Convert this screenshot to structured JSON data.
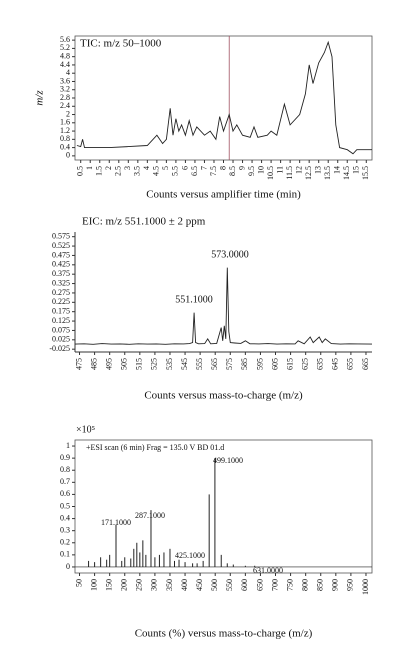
{
  "chart_data": [
    {
      "type": "line",
      "title": "TIC: m/z 50–1000",
      "ylabel": "m/z",
      "xlabel": "Counts versus amplifier time (min)",
      "color": "#222222",
      "cursor_x": 8.3,
      "x": [
        0.3,
        0.5,
        0.6,
        0.7,
        1,
        2,
        3,
        4,
        4.3,
        4.5,
        4.8,
        5,
        5.2,
        5.35,
        5.5,
        5.65,
        5.8,
        6,
        6.2,
        6.4,
        6.6,
        7,
        7.3,
        7.6,
        7.8,
        8,
        8.3,
        8.5,
        8.7,
        9,
        9.4,
        9.6,
        9.8,
        10.3,
        10.5,
        10.8,
        11.2,
        11.5,
        12,
        12.3,
        12.5,
        12.7,
        13,
        13.3,
        13.5,
        13.7,
        13.9,
        14.1,
        14.5,
        14.8,
        15,
        15.8
      ],
      "values": [
        0.5,
        0.45,
        0.8,
        0.4,
        0.4,
        0.4,
        0.45,
        0.5,
        0.8,
        1.0,
        0.6,
        0.8,
        2.3,
        1.0,
        1.8,
        1.2,
        1.5,
        1.0,
        1.7,
        1.0,
        1.4,
        1.0,
        1.2,
        0.8,
        1.9,
        1.2,
        2.0,
        1.2,
        1.5,
        1.0,
        0.9,
        1.4,
        0.9,
        1.0,
        1.2,
        1.0,
        2.5,
        1.5,
        2.0,
        3.0,
        4.4,
        3.5,
        4.5,
        5.0,
        5.5,
        4.8,
        1.5,
        0.4,
        0.3,
        0.1,
        0.3,
        0.3
      ],
      "xlim": [
        0.2,
        15.8
      ],
      "ylim": [
        -0.2,
        5.8
      ],
      "xticks": [
        0.5,
        1,
        1.5,
        2,
        2.5,
        3,
        3.5,
        4,
        4.5,
        5,
        5.5,
        6,
        6.5,
        7,
        7.5,
        8,
        8.5,
        9,
        9.5,
        10,
        10.5,
        11,
        11.5,
        12,
        12.5,
        13,
        13.5,
        14,
        14.5,
        15,
        15.5
      ],
      "yticks": [
        0,
        0.4,
        0.8,
        1.2,
        1.6,
        2,
        2.4,
        2.8,
        3.2,
        3.6,
        4,
        4.4,
        4.8,
        5.2,
        5.6
      ]
    },
    {
      "type": "line",
      "title": "EIC: m/z 551.1000 ± 2 ppm",
      "xlabel": "Counts versus mass-to-charge (m/z)",
      "color": "#222222",
      "annotations": [
        "551.1000",
        "573.0000"
      ],
      "x": [
        472,
        478,
        484,
        490,
        496,
        502,
        508,
        514,
        520,
        526,
        532,
        538,
        544,
        548,
        550,
        551,
        552,
        554,
        558,
        560,
        562,
        566,
        569,
        570,
        571,
        572,
        573,
        574,
        575,
        578,
        582,
        585,
        588,
        594,
        600,
        606,
        612,
        618,
        620,
        624,
        628,
        630,
        634,
        636,
        638,
        642,
        648,
        654,
        660,
        669
      ],
      "values": [
        0.002,
        0.004,
        0.001,
        0.005,
        0.002,
        0.003,
        0.001,
        0.004,
        0.002,
        0.003,
        0.001,
        0.004,
        0.003,
        0.005,
        0.01,
        0.17,
        0.01,
        0.004,
        0.005,
        0.03,
        0.004,
        0.006,
        0.09,
        0.02,
        0.1,
        0.03,
        0.41,
        0.07,
        0.01,
        0.008,
        0.006,
        0.02,
        0.004,
        0.003,
        0.005,
        0.002,
        0.004,
        0.003,
        0.02,
        0.004,
        0.04,
        0.01,
        0.04,
        0.01,
        0.03,
        0.005,
        0.002,
        0.004,
        0.003,
        0.002
      ],
      "xlim": [
        472,
        669
      ],
      "ylim": [
        -0.04,
        0.6
      ],
      "xticks": [
        475,
        485,
        495,
        505,
        515,
        525,
        535,
        545,
        555,
        565,
        575,
        585,
        595,
        605,
        615,
        625,
        635,
        645,
        655,
        665
      ],
      "yticks": [
        -0.025,
        0.025,
        0.075,
        0.125,
        0.175,
        0.225,
        0.275,
        0.325,
        0.375,
        0.425,
        0.475,
        0.525,
        0.575
      ]
    },
    {
      "type": "stick",
      "subtitle": "+ESI scan (6 min) Frag = 135.0 V BD 01.d",
      "scale_label": "×10⁵",
      "xlabel": "Counts (%) versus mass-to-charge (m/z)",
      "color": "#222222",
      "annotations": [
        "171.1000",
        "287.1000",
        "425.1000",
        "499.1000",
        "631.0000"
      ],
      "x": [
        80,
        100,
        120,
        140,
        150,
        171,
        190,
        200,
        220,
        230,
        240,
        250,
        260,
        270,
        287,
        300,
        315,
        330,
        350,
        365,
        380,
        400,
        425,
        440,
        460,
        480,
        499,
        520,
        540,
        560,
        600,
        631
      ],
      "values": [
        0.05,
        0.04,
        0.08,
        0.06,
        0.1,
        0.35,
        0.05,
        0.08,
        0.07,
        0.15,
        0.2,
        0.12,
        0.22,
        0.1,
        0.47,
        0.08,
        0.1,
        0.12,
        0.15,
        0.05,
        0.06,
        0.04,
        0.03,
        0.03,
        0.05,
        0.6,
        0.9,
        0.1,
        0.03,
        0.02,
        0.01,
        0.01
      ],
      "xlim": [
        35,
        1020
      ],
      "ylim": [
        -0.05,
        1.05
      ],
      "xticks": [
        50,
        100,
        150,
        200,
        250,
        300,
        350,
        400,
        450,
        500,
        550,
        600,
        650,
        700,
        750,
        800,
        850,
        900,
        950,
        1000
      ],
      "yticks": [
        0,
        0.1,
        0.2,
        0.3,
        0.4,
        0.5,
        0.6,
        0.7,
        0.8,
        0.9,
        1
      ]
    }
  ]
}
